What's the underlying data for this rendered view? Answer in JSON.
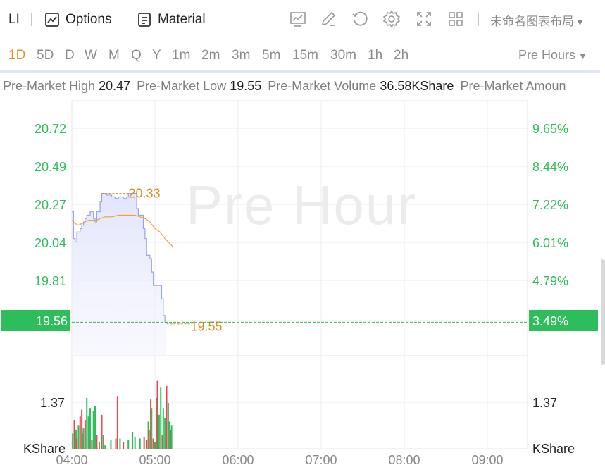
{
  "toolbar": {
    "symbol": "LI",
    "options_label": "Options",
    "material_label": "Material",
    "layout_name": "未命名图表布局"
  },
  "periods": [
    {
      "label": "1D",
      "active": true
    },
    {
      "label": "5D"
    },
    {
      "label": "D"
    },
    {
      "label": "W"
    },
    {
      "label": "M"
    },
    {
      "label": "Q"
    },
    {
      "label": "Y"
    },
    {
      "label": "1m"
    },
    {
      "label": "2m"
    },
    {
      "label": "3m"
    },
    {
      "label": "5m"
    },
    {
      "label": "15m"
    },
    {
      "label": "30m"
    },
    {
      "label": "1h"
    },
    {
      "label": "2h"
    }
  ],
  "session_label": "Pre Hours",
  "stats": [
    {
      "label": "Pre-Market High",
      "value": "20.47"
    },
    {
      "label": "Pre-Market Low",
      "value": "19.55"
    },
    {
      "label": "Pre-Market Volume",
      "value": "36.58KShare"
    },
    {
      "label": "Pre-Market Amoun",
      "value": ""
    }
  ],
  "watermark": "Pre Hour",
  "colors": {
    "up": "#2dbd5b",
    "down": "#e8474f",
    "price_line": "#9aa3e6",
    "avg_line": "#f2a03c",
    "label_orange": "#e08a1e"
  },
  "chart_data": {
    "type": "line",
    "price_axis_left": [
      "20.72",
      "20.49",
      "20.27",
      "20.04",
      "19.81"
    ],
    "percent_axis_right": [
      "9.65%",
      "8.44%",
      "7.22%",
      "6.01%",
      "4.79%"
    ],
    "current_price": "19.56",
    "current_percent": "3.49%",
    "high_marker": "20.33",
    "low_marker": "19.55",
    "volume_axis_left": "1.37",
    "volume_axis_right": "1.37",
    "volume_unit_left": "KShare",
    "volume_unit_right": "KShare",
    "x_ticks": [
      "04:00",
      "05:00",
      "06:00",
      "07:00",
      "08:00",
      "09:00"
    ],
    "price_series": [
      [
        4.0,
        20.22
      ],
      [
        4.02,
        20.06
      ],
      [
        4.04,
        20.04
      ],
      [
        4.06,
        20.1
      ],
      [
        4.08,
        20.1
      ],
      [
        4.1,
        20.12
      ],
      [
        4.12,
        20.14
      ],
      [
        4.14,
        20.16
      ],
      [
        4.16,
        20.18
      ],
      [
        4.18,
        20.2
      ],
      [
        4.2,
        20.2
      ],
      [
        4.22,
        20.22
      ],
      [
        4.24,
        20.22
      ],
      [
        4.26,
        20.18
      ],
      [
        4.28,
        20.16
      ],
      [
        4.3,
        20.22
      ],
      [
        4.32,
        20.22
      ],
      [
        4.34,
        20.28
      ],
      [
        4.36,
        20.33
      ],
      [
        4.38,
        20.33
      ],
      [
        4.4,
        20.33
      ],
      [
        4.42,
        20.32
      ],
      [
        4.44,
        20.32
      ],
      [
        4.46,
        20.32
      ],
      [
        4.48,
        20.31
      ],
      [
        4.5,
        20.31
      ],
      [
        4.52,
        20.3
      ],
      [
        4.54,
        20.3
      ],
      [
        4.56,
        20.31
      ],
      [
        4.58,
        20.31
      ],
      [
        4.6,
        20.31
      ],
      [
        4.62,
        20.3
      ],
      [
        4.64,
        20.3
      ],
      [
        4.66,
        20.31
      ],
      [
        4.68,
        20.33
      ],
      [
        4.7,
        20.33
      ],
      [
        4.72,
        20.33
      ],
      [
        4.74,
        20.33
      ],
      [
        4.76,
        20.33
      ],
      [
        4.78,
        20.24
      ],
      [
        4.8,
        20.2
      ],
      [
        4.82,
        20.2
      ],
      [
        4.84,
        20.2
      ],
      [
        4.86,
        20.12
      ],
      [
        4.88,
        20.06
      ],
      [
        4.9,
        19.96
      ],
      [
        4.92,
        19.96
      ],
      [
        4.94,
        19.94
      ],
      [
        4.96,
        19.86
      ],
      [
        4.98,
        19.78
      ],
      [
        5.0,
        19.78
      ],
      [
        5.02,
        19.78
      ],
      [
        5.04,
        19.78
      ],
      [
        5.06,
        19.78
      ],
      [
        5.08,
        19.7
      ],
      [
        5.1,
        19.6
      ],
      [
        5.12,
        19.56
      ],
      [
        5.14,
        19.56
      ]
    ],
    "avg_series": [
      [
        4.0,
        20.17
      ],
      [
        4.04,
        20.15
      ],
      [
        4.08,
        20.14
      ],
      [
        4.12,
        20.15
      ],
      [
        4.16,
        20.16
      ],
      [
        4.2,
        20.17
      ],
      [
        4.26,
        20.17
      ],
      [
        4.3,
        20.17
      ],
      [
        4.34,
        20.18
      ],
      [
        4.4,
        20.19
      ],
      [
        4.48,
        20.19
      ],
      [
        4.56,
        20.2
      ],
      [
        4.66,
        20.2
      ],
      [
        4.76,
        20.2
      ],
      [
        4.82,
        20.19
      ],
      [
        4.88,
        20.18
      ],
      [
        4.94,
        20.16
      ],
      [
        5.0,
        20.12
      ],
      [
        5.06,
        20.1
      ],
      [
        5.12,
        20.06
      ],
      [
        5.18,
        20.03
      ],
      [
        5.22,
        20.01
      ]
    ],
    "volume_series": [
      [
        4.01,
        0.45,
        "up"
      ],
      [
        4.03,
        0.85,
        "down"
      ],
      [
        4.05,
        0.55,
        "up"
      ],
      [
        4.06,
        0.3,
        "down"
      ],
      [
        4.08,
        0.7,
        "up"
      ],
      [
        4.1,
        0.95,
        "down"
      ],
      [
        4.12,
        1.15,
        "down"
      ],
      [
        4.13,
        0.45,
        "up"
      ],
      [
        4.14,
        0.6,
        "up"
      ],
      [
        4.16,
        0.85,
        "down"
      ],
      [
        4.18,
        1.5,
        "up"
      ],
      [
        4.2,
        0.95,
        "up"
      ],
      [
        4.22,
        1.2,
        "up"
      ],
      [
        4.24,
        0.25,
        "down"
      ],
      [
        4.26,
        1.1,
        "up"
      ],
      [
        4.28,
        1.25,
        "up"
      ],
      [
        4.3,
        0.4,
        "down"
      ],
      [
        4.33,
        0.2,
        "up"
      ],
      [
        4.36,
        1.0,
        "down"
      ],
      [
        4.38,
        0.4,
        "up"
      ],
      [
        4.4,
        0.1,
        "up"
      ],
      [
        4.47,
        0.25,
        "up"
      ],
      [
        4.53,
        0.3,
        "down"
      ],
      [
        4.55,
        1.55,
        "down"
      ],
      [
        4.58,
        0.3,
        "up"
      ],
      [
        4.62,
        0.2,
        "down"
      ],
      [
        4.68,
        0.25,
        "up"
      ],
      [
        4.73,
        0.5,
        "up"
      ],
      [
        4.76,
        0.35,
        "up"
      ],
      [
        4.82,
        0.3,
        "up"
      ],
      [
        4.87,
        0.35,
        "down"
      ],
      [
        4.9,
        0.25,
        "down"
      ],
      [
        4.92,
        0.8,
        "up"
      ],
      [
        4.93,
        0.55,
        "down"
      ],
      [
        4.95,
        1.45,
        "down"
      ],
      [
        4.96,
        1.2,
        "up"
      ],
      [
        4.98,
        0.3,
        "down"
      ],
      [
        5.0,
        0.2,
        "up"
      ],
      [
        5.02,
        1.5,
        "up"
      ],
      [
        5.03,
        2.0,
        "down"
      ],
      [
        5.05,
        1.0,
        "up"
      ],
      [
        5.07,
        1.8,
        "up"
      ],
      [
        5.09,
        0.4,
        "down"
      ],
      [
        5.1,
        1.2,
        "up"
      ],
      [
        5.12,
        0.9,
        "up"
      ],
      [
        5.14,
        1.85,
        "down"
      ],
      [
        5.16,
        1.35,
        "up"
      ],
      [
        5.17,
        0.8,
        "up"
      ],
      [
        5.19,
        0.55,
        "down"
      ],
      [
        5.2,
        0.7,
        "up"
      ]
    ]
  }
}
